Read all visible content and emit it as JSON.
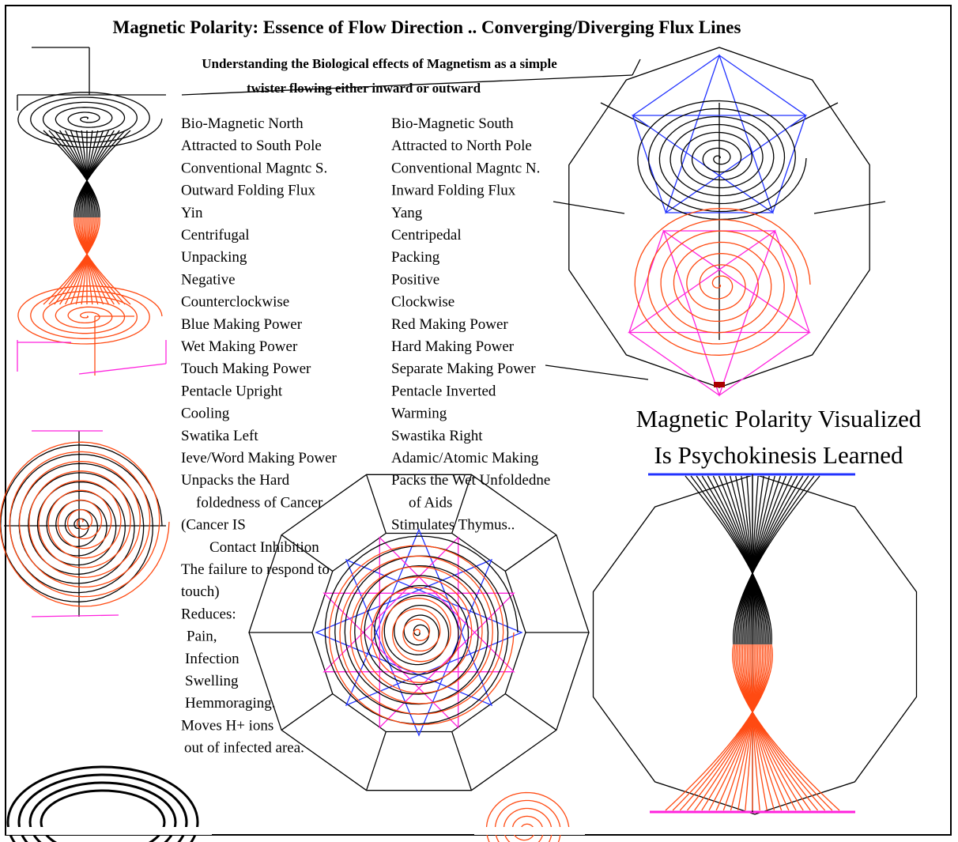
{
  "header": {
    "title": "Magnetic Polarity: Essence of Flow Direction .. Converging/Diverging Flux Lines",
    "subtitle": [
      "Understanding the Biological effects of Magnetism as a simple",
      "twister flowing either inward or outward"
    ]
  },
  "columns": {
    "north": [
      "Bio-Magnetic North",
      "Attracted to South Pole",
      "Conventional Magntc S.",
      "Outward Folding Flux",
      "Yin",
      "Centrifugal",
      "Unpacking",
      "Negative",
      "Counterclockwise",
      "Blue Making Power",
      "Wet Making Power",
      "Touch Making Power",
      "Pentacle Upright",
      "Cooling",
      "Swatika Left",
      "Ieve/Word Making Power",
      "Unpacks the Hard",
      "foldedness of Cancer",
      "(Cancer IS",
      "Contact Inhibition",
      "The failure to respond to",
      "touch)",
      "Reduces:",
      "Pain,",
      "Infection",
      "Swelling",
      "Hemmoraging.",
      "Moves H+ ions",
      "out of infected area."
    ],
    "south": [
      "Bio-Magnetic South",
      "Attracted to North Pole",
      "Conventional Magntc N.",
      "Inward Folding Flux",
      "Yang",
      "Centripedal",
      "Packing",
      "Positive",
      "Clockwise",
      "Red Making Power",
      "Hard Making Power",
      "Separate Making Power",
      "Pentacle Inverted",
      "Warming",
      "Swastika Right",
      "Adamic/Atomic Making",
      "Packs the Wet Unfoldedne",
      "of Aids",
      "Stimulates Thymus.."
    ]
  },
  "caption": [
    "Magnetic Polarity Visualized",
    "Is Psychokinesis Learned"
  ]
}
